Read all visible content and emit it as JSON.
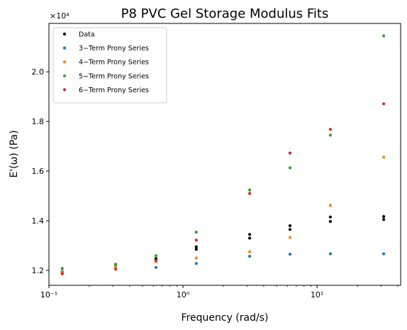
{
  "chart_data": {
    "type": "scatter",
    "title": "P8 PVC Gel Storage Modulus Fits",
    "xlabel": "Frequency (rad/s)",
    "ylabel": "E'(ω) (Pa)",
    "x_scale": "log",
    "xlim": [
      0.1,
      42
    ],
    "ylim": [
      11400,
      21950
    ],
    "x_ticks": [
      {
        "value": 0.1,
        "label": "10⁻¹"
      },
      {
        "value": 1,
        "label": "10⁰"
      },
      {
        "value": 10,
        "label": "10¹"
      }
    ],
    "y_ticks": [
      {
        "value": 12000,
        "label": "1.2"
      },
      {
        "value": 14000,
        "label": "1.4"
      },
      {
        "value": 16000,
        "label": "1.6"
      },
      {
        "value": 18000,
        "label": "1.8"
      },
      {
        "value": 20000,
        "label": "2.0"
      }
    ],
    "y_multiplier": "×10⁴",
    "grid": false,
    "legend_position": "top-left",
    "series": [
      {
        "name": "Data",
        "color": "#000000",
        "points": [
          [
            0.1257,
            11900
          ],
          [
            0.1257,
            11940
          ],
          [
            0.3142,
            12180
          ],
          [
            0.3142,
            12230
          ],
          [
            0.6283,
            12430
          ],
          [
            0.6283,
            12470
          ],
          [
            1.2566,
            12850
          ],
          [
            1.2566,
            12950
          ],
          [
            3.1416,
            13300
          ],
          [
            3.1416,
            13450
          ],
          [
            6.2832,
            13650
          ],
          [
            6.2832,
            13800
          ],
          [
            12.566,
            13970
          ],
          [
            12.566,
            14150
          ],
          [
            31.416,
            14050
          ],
          [
            31.416,
            14170
          ]
        ]
      },
      {
        "name": "3−Term Prony Series",
        "color": "#1f77b4",
        "points": [
          [
            0.1257,
            11960
          ],
          [
            0.3142,
            12180
          ],
          [
            0.6283,
            12120
          ],
          [
            1.2566,
            12280
          ],
          [
            3.1416,
            12570
          ],
          [
            6.2832,
            12650
          ],
          [
            12.566,
            12670
          ],
          [
            31.416,
            12670
          ]
        ]
      },
      {
        "name": "4−Term Prony Series",
        "color": "#ff7f0e",
        "points": [
          [
            0.1257,
            11930
          ],
          [
            0.3142,
            12150
          ],
          [
            0.6283,
            12350
          ],
          [
            1.2566,
            12500
          ],
          [
            3.1416,
            12750
          ],
          [
            6.2832,
            13330
          ],
          [
            12.566,
            14620
          ],
          [
            31.416,
            16560
          ]
        ]
      },
      {
        "name": "5−Term Prony Series",
        "color": "#2ca02c",
        "points": [
          [
            0.1257,
            12080
          ],
          [
            0.3142,
            12250
          ],
          [
            0.6283,
            12590
          ],
          [
            1.2566,
            13540
          ],
          [
            3.1416,
            15240
          ],
          [
            6.2832,
            16130
          ],
          [
            12.566,
            17450
          ],
          [
            31.416,
            21450
          ]
        ]
      },
      {
        "name": "6−Term Prony Series",
        "color": "#d62728",
        "points": [
          [
            0.1257,
            11860
          ],
          [
            0.3142,
            12050
          ],
          [
            0.6283,
            12400
          ],
          [
            1.2566,
            13220
          ],
          [
            3.1416,
            15100
          ],
          [
            6.2832,
            16730
          ],
          [
            12.566,
            17680
          ],
          [
            31.416,
            18710
          ]
        ]
      }
    ]
  }
}
